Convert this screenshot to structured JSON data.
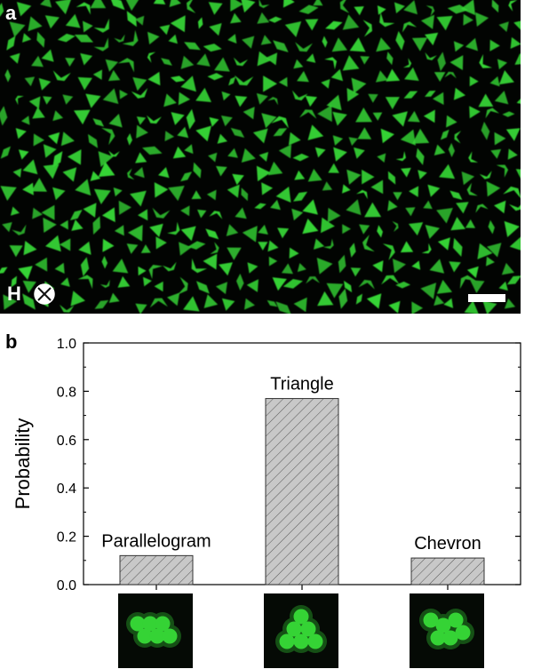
{
  "panels": {
    "a": "a",
    "b": "b"
  },
  "micrograph": {
    "field_label": "H",
    "field_symbol": "into-page-cross-circle-icon",
    "scale_bar_color": "#ffffff",
    "particle_color": "#35d335",
    "background_color": "#020402"
  },
  "chart_data": {
    "type": "bar",
    "categories": [
      "Parallelogram",
      "Triangle",
      "Chevron"
    ],
    "values": [
      0.12,
      0.77,
      0.11
    ],
    "title": "",
    "xlabel": "",
    "ylabel": "Probability",
    "ylim": [
      0,
      1.0
    ],
    "yticks": [
      "0.0",
      "0.2",
      "0.4",
      "0.6",
      "0.8",
      "1.0"
    ],
    "bar_fill": "#c8c8c8",
    "bar_hatch": "diagonal",
    "bar_labels": [
      "Parallelogram",
      "Triangle",
      "Chevron"
    ],
    "grid": false
  },
  "thumbnails": [
    {
      "name": "parallelogram-cluster",
      "color": "#35d335"
    },
    {
      "name": "triangle-cluster",
      "color": "#35d335"
    },
    {
      "name": "chevron-cluster",
      "color": "#35d335"
    }
  ]
}
